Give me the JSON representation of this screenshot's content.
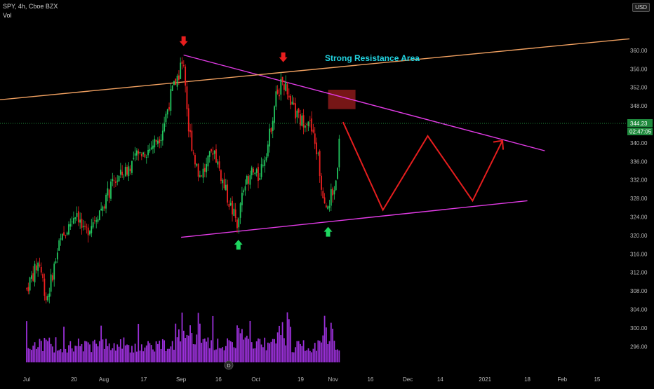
{
  "header": {
    "symbol_line": "SPY, 4h, Cboe BZX",
    "volume_label": "Vol",
    "currency_badge": "USD"
  },
  "price_tags": {
    "last_price": "344.23",
    "countdown": "02:47:05"
  },
  "events_badge": "D",
  "annotation_text": "Strong Resistance Area",
  "colors": {
    "background": "#000000",
    "up_candle": "#22c55e",
    "down_candle": "#ef2020",
    "volume": "#9b30d9",
    "trendline_magenta": "#e23be6",
    "trendline_orange": "#f0a060",
    "annotation_text": "#22d3e0",
    "projection": "#e61e1e",
    "resistance_box": "#8b1a1a",
    "price_line": "#1e8a3a",
    "arrow_up": "#1ed760",
    "arrow_down": "#e81e1e"
  },
  "chart_data": {
    "type": "candlestick",
    "title": "SPY, 4h, Cboe BZX",
    "ylabel": "",
    "xlabel": "",
    "ylim": [
      294,
      364
    ],
    "grid": false,
    "y_ticks": [
      296,
      300,
      304,
      308,
      312,
      316,
      320,
      324,
      328,
      332,
      336,
      340,
      344,
      348,
      352,
      356,
      360
    ],
    "x_ticks": [
      {
        "label": "Jul",
        "day": 0
      },
      {
        "label": "20",
        "day": 19
      },
      {
        "label": "Aug",
        "day": 31
      },
      {
        "label": "17",
        "day": 47
      },
      {
        "label": "Sep",
        "day": 62
      },
      {
        "label": "16",
        "day": 77
      },
      {
        "label": "Oct",
        "day": 92
      },
      {
        "label": "19",
        "day": 110
      },
      {
        "label": "Nov",
        "day": 123
      },
      {
        "label": "16",
        "day": 138
      },
      {
        "label": "Dec",
        "day": 153
      },
      {
        "label": "14",
        "day": 166
      },
      {
        "label": "2021",
        "day": 184
      },
      {
        "label": "18",
        "day": 201
      },
      {
        "label": "Feb",
        "day": 215
      },
      {
        "label": "15",
        "day": 229
      }
    ],
    "price_path": [
      {
        "date": "2020-07-01",
        "price": 308.5
      },
      {
        "date": "2020-07-06",
        "price": 314.5
      },
      {
        "date": "2020-07-09",
        "price": 306.0
      },
      {
        "date": "2020-07-14",
        "price": 318.0
      },
      {
        "date": "2020-07-17",
        "price": 321.0
      },
      {
        "date": "2020-07-21",
        "price": 325.5
      },
      {
        "date": "2020-07-24",
        "price": 320.0
      },
      {
        "date": "2020-07-28",
        "price": 323.5
      },
      {
        "date": "2020-07-31",
        "price": 326.0
      },
      {
        "date": "2020-08-05",
        "price": 331.5
      },
      {
        "date": "2020-08-10",
        "price": 334.0
      },
      {
        "date": "2020-08-14",
        "price": 337.0
      },
      {
        "date": "2020-08-19",
        "price": 338.5
      },
      {
        "date": "2020-08-24",
        "price": 342.0
      },
      {
        "date": "2020-08-28",
        "price": 350.5
      },
      {
        "date": "2020-09-02",
        "price": 358.0
      },
      {
        "date": "2020-09-04",
        "price": 343.0
      },
      {
        "date": "2020-09-08",
        "price": 333.0
      },
      {
        "date": "2020-09-11",
        "price": 334.5
      },
      {
        "date": "2020-09-14",
        "price": 339.0
      },
      {
        "date": "2020-09-18",
        "price": 331.0
      },
      {
        "date": "2020-09-21",
        "price": 326.0
      },
      {
        "date": "2020-09-24",
        "price": 322.0
      },
      {
        "date": "2020-09-25",
        "price": 328.5
      },
      {
        "date": "2020-09-29",
        "price": 334.0
      },
      {
        "date": "2020-10-02",
        "price": 332.5
      },
      {
        "date": "2020-10-06",
        "price": 340.0
      },
      {
        "date": "2020-10-09",
        "price": 350.0
      },
      {
        "date": "2020-10-12",
        "price": 353.5
      },
      {
        "date": "2020-10-15",
        "price": 348.0
      },
      {
        "date": "2020-10-19",
        "price": 344.5
      },
      {
        "date": "2020-10-22",
        "price": 345.5
      },
      {
        "date": "2020-10-26",
        "price": 337.0
      },
      {
        "date": "2020-10-28",
        "price": 326.5
      },
      {
        "date": "2020-10-30",
        "price": 327.0
      },
      {
        "date": "2020-11-02",
        "price": 331.0
      },
      {
        "date": "2020-11-04",
        "price": 343.5
      }
    ],
    "volume_scale_note": "",
    "annotations": [
      {
        "type": "text",
        "text": "Strong Resistance Area"
      },
      {
        "type": "trendline",
        "name": "descending resistance",
        "from": {
          "date": "2020-09-02",
          "price": 359.0
        },
        "to": {
          "date": "2021-01-25",
          "price": 338.3
        }
      },
      {
        "type": "trendline",
        "name": "ascending support",
        "from": {
          "date": "2020-09-01",
          "price": 319.6
        },
        "to": {
          "date": "2021-01-18",
          "price": 327.5
        }
      },
      {
        "type": "trendline",
        "name": "long-term resistance",
        "from": {
          "date": "2020-06-10",
          "price": 348.8
        },
        "to": {
          "date": "2021-02-28",
          "price": 362.5
        }
      },
      {
        "type": "zone",
        "name": "resistance area",
        "from_date": "2020-10-30",
        "to_date": "2020-11-10",
        "price_low": 347.3,
        "price_high": 351.5
      },
      {
        "type": "projection",
        "points": [
          {
            "date": "2020-11-05",
            "price": 344.5
          },
          {
            "date": "2020-11-21",
            "price": 325.5
          },
          {
            "date": "2020-12-09",
            "price": 341.5
          },
          {
            "date": "2020-12-27",
            "price": 327.5
          },
          {
            "date": "2021-01-08",
            "price": 340.5
          }
        ]
      },
      {
        "type": "arrow_down",
        "date": "2020-09-02",
        "price": 362.0
      },
      {
        "type": "arrow_down",
        "date": "2020-10-12",
        "price": 358.5
      },
      {
        "type": "arrow_up",
        "date": "2020-09-24",
        "price": 318.0
      },
      {
        "type": "arrow_up",
        "date": "2020-10-30",
        "price": 320.8
      }
    ]
  }
}
